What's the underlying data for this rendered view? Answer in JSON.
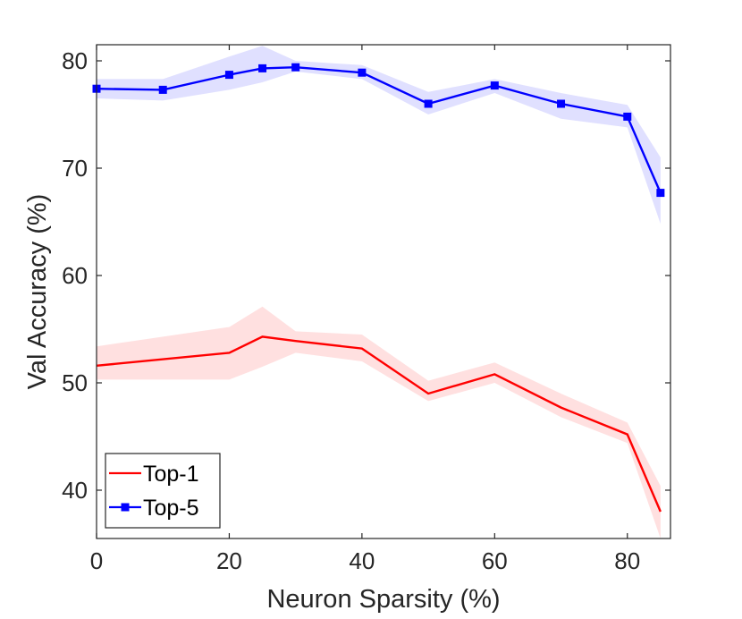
{
  "chart_data": {
    "type": "line",
    "title": "",
    "xlabel": "Neuron Sparsity (%)",
    "ylabel": "Val Accuracy (%)",
    "xlim": [
      0,
      86.5
    ],
    "ylim": [
      35.5,
      81.5
    ],
    "xticks": [
      0,
      20,
      40,
      60,
      80
    ],
    "yticks": [
      40,
      50,
      60,
      70,
      80
    ],
    "grid": false,
    "legend_position": "bottom-left",
    "series": [
      {
        "name": "Top-1",
        "color": "#ff0000",
        "band_color": "#ff0000",
        "marker": "none",
        "x": [
          0,
          20,
          25,
          30,
          40,
          50,
          60,
          70,
          80,
          85
        ],
        "y": [
          51.6,
          52.8,
          54.3,
          53.9,
          53.2,
          49.0,
          50.8,
          47.7,
          45.2,
          38.0
        ],
        "lower": [
          50.3,
          50.3,
          51.5,
          52.8,
          52.0,
          48.3,
          50.0,
          46.8,
          44.4,
          35.5
        ],
        "upper": [
          53.4,
          55.2,
          57.1,
          54.8,
          54.5,
          50.2,
          51.9,
          49.0,
          46.3,
          40.4
        ]
      },
      {
        "name": "Top-5",
        "color": "#0000ff",
        "band_color": "#0000ff",
        "marker": "square",
        "x": [
          0,
          10,
          20,
          25,
          30,
          40,
          50,
          60,
          70,
          80,
          85
        ],
        "y": [
          77.4,
          77.3,
          78.7,
          79.3,
          79.4,
          78.9,
          76.0,
          77.7,
          76.0,
          74.8,
          67.7
        ],
        "lower": [
          76.5,
          76.3,
          77.3,
          78.0,
          79.0,
          78.3,
          75.0,
          77.0,
          74.6,
          73.8,
          64.8
        ],
        "upper": [
          78.3,
          78.3,
          80.4,
          81.4,
          80.0,
          79.6,
          77.1,
          78.3,
          77.0,
          75.9,
          71.0
        ]
      }
    ]
  }
}
